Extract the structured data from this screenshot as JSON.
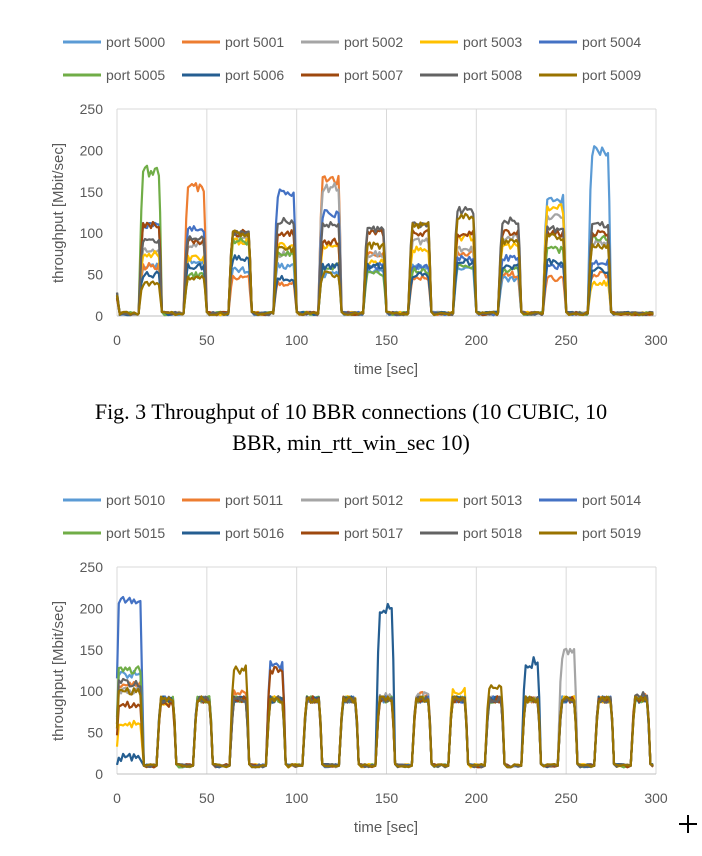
{
  "colors": {
    "port 5000": "#5B9BD5",
    "port 5001": "#ED7D31",
    "port 5002": "#A5A5A5",
    "port 5003": "#FFC000",
    "port 5004": "#4472C4",
    "port 5005": "#70AD47",
    "port 5006": "#255E91",
    "port 5007": "#9E480E",
    "port 5008": "#636363",
    "port 5009": "#997300",
    "grid": "#D9D9D9",
    "axis_text": "#595959"
  },
  "caption1": {
    "line1": "Fig. 3 Throughput of 10 BBR connections (10 CUBIC, 10",
    "line2": "BBR, min_rtt_win_sec 10)"
  },
  "chart_data": [
    {
      "type": "line",
      "xlabel": "time [sec]",
      "ylabel": "throughput [Mbit/sec]",
      "xlim": [
        0,
        300
      ],
      "ylim": [
        0,
        250
      ],
      "xticks": [
        "0",
        "50",
        "100",
        "150",
        "200",
        "250",
        "300"
      ],
      "yticks": [
        "0",
        "50",
        "100",
        "150",
        "200",
        "250"
      ],
      "grid": "vertical",
      "legend_position": "top",
      "cycle": {
        "period": 25,
        "first_on": 12,
        "on_length": 13
      },
      "series": [
        {
          "name": "port 5000",
          "color": "#5B9BD5",
          "levels": [
            60,
            65,
            55,
            60,
            50,
            55,
            60,
            55,
            45,
            140,
            200
          ],
          "base": 3
        },
        {
          "name": "port 5001",
          "color": "#ED7D31",
          "levels": [
            60,
            155,
            45,
            40,
            165,
            75,
            45,
            75,
            50,
            45,
            50
          ],
          "base": 3
        },
        {
          "name": "port 5002",
          "color": "#A5A5A5",
          "levels": [
            80,
            85,
            95,
            75,
            155,
            75,
            90,
            80,
            95,
            120,
            90
          ],
          "base": 3
        },
        {
          "name": "port 5003",
          "color": "#FFC000",
          "levels": [
            75,
            70,
            90,
            85,
            85,
            65,
            80,
            95,
            85,
            130,
            40
          ],
          "base": 3
        },
        {
          "name": "port 5004",
          "color": "#4472C4",
          "levels": [
            110,
            105,
            100,
            150,
            125,
            60,
            60,
            70,
            70,
            60,
            65
          ],
          "base": 3
        },
        {
          "name": "port 5005",
          "color": "#70AD47",
          "levels": [
            175,
            50,
            90,
            75,
            60,
            50,
            55,
            60,
            55,
            80,
            95
          ],
          "base": 3
        },
        {
          "name": "port 5006",
          "color": "#255E91",
          "levels": [
            50,
            60,
            70,
            45,
            60,
            60,
            50,
            65,
            60,
            65,
            55
          ],
          "base": 3
        },
        {
          "name": "port 5007",
          "color": "#9E480E",
          "levels": [
            110,
            90,
            100,
            100,
            90,
            100,
            100,
            100,
            100,
            100,
            100
          ],
          "base": 3
        },
        {
          "name": "port 5008",
          "color": "#636363",
          "levels": [
            90,
            95,
            100,
            115,
            110,
            105,
            110,
            130,
            115,
            105,
            110
          ],
          "base": 3
        },
        {
          "name": "port 5009",
          "color": "#997300",
          "levels": [
            40,
            45,
            100,
            80,
            50,
            85,
            110,
            120,
            90,
            95,
            85
          ],
          "base": 3
        }
      ]
    },
    {
      "type": "line",
      "xlabel": "time [sec]",
      "ylabel": "throughput [Mbit/sec]",
      "xlim": [
        0,
        300
      ],
      "ylim": [
        0,
        250
      ],
      "xticks": [
        "0",
        "50",
        "100",
        "150",
        "200",
        "250",
        "300"
      ],
      "yticks": [
        "0",
        "50",
        "100",
        "150",
        "200",
        "250"
      ],
      "grid": "vertical",
      "legend_position": "top",
      "cycle": {
        "period": 20.3,
        "first_on": 22,
        "on_length": 11
      },
      "initial_segment": {
        "end": 15
      },
      "series": [
        {
          "name": "port 5010",
          "color": "#5B9BD5",
          "initial": 120,
          "levels": [
            90,
            88,
            90,
            90,
            90,
            90,
            90,
            90,
            90,
            90,
            90,
            90,
            90,
            90
          ],
          "base": 10
        },
        {
          "name": "port 5011",
          "color": "#ED7D31",
          "initial": 110,
          "levels": [
            90,
            90,
            100,
            90,
            90,
            90,
            90,
            95,
            90,
            90,
            90,
            90,
            90,
            95
          ],
          "base": 10
        },
        {
          "name": "port 5012",
          "color": "#A5A5A5",
          "initial": 100,
          "levels": [
            90,
            90,
            90,
            90,
            90,
            90,
            95,
            95,
            90,
            90,
            90,
            145,
            90,
            90
          ],
          "base": 10
        },
        {
          "name": "port 5013",
          "color": "#FFC000",
          "initial": 60,
          "levels": [
            85,
            90,
            90,
            90,
            90,
            90,
            90,
            90,
            100,
            90,
            90,
            90,
            90,
            90
          ],
          "base": 10
        },
        {
          "name": "port 5014",
          "color": "#4472C4",
          "initial": 210,
          "levels": [
            90,
            90,
            90,
            130,
            90,
            90,
            90,
            90,
            90,
            90,
            90,
            90,
            90,
            90
          ],
          "base": 10
        },
        {
          "name": "port 5015",
          "color": "#70AD47",
          "initial": 125,
          "levels": [
            90,
            90,
            90,
            90,
            90,
            90,
            90,
            90,
            90,
            90,
            90,
            90,
            90,
            90
          ],
          "base": 10
        },
        {
          "name": "port 5016",
          "color": "#255E91",
          "initial": 20,
          "levels": [
            90,
            90,
            90,
            90,
            90,
            90,
            200,
            90,
            90,
            90,
            135,
            90,
            90,
            90
          ],
          "base": 10
        },
        {
          "name": "port 5017",
          "color": "#9E480E",
          "initial": 85,
          "levels": [
            85,
            90,
            90,
            125,
            90,
            90,
            90,
            90,
            90,
            90,
            90,
            90,
            90,
            90
          ],
          "base": 10
        },
        {
          "name": "port 5018",
          "color": "#636363",
          "initial": 110,
          "levels": [
            90,
            90,
            90,
            90,
            90,
            90,
            90,
            90,
            90,
            90,
            90,
            90,
            90,
            95
          ],
          "base": 10
        },
        {
          "name": "port 5019",
          "color": "#997300",
          "initial": 100,
          "levels": [
            90,
            90,
            125,
            90,
            90,
            90,
            90,
            90,
            90,
            105,
            90,
            90,
            90,
            90
          ],
          "base": 10
        }
      ]
    }
  ]
}
